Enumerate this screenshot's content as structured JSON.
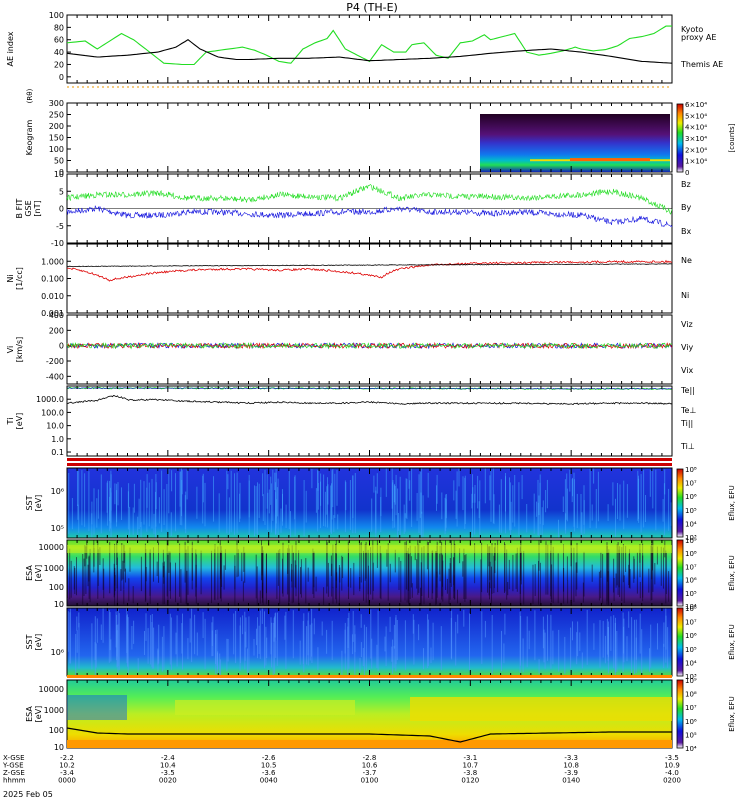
{
  "title": "P4 (TH-E)",
  "date_label": "2025 Feb 05",
  "colors": {
    "green": "#22dd22",
    "red": "#dd0000",
    "blue": "#1010dd",
    "black": "#000000",
    "orange": "#ee9900"
  },
  "chart_data": [
    {
      "id": "ae",
      "type": "line",
      "ylabel": "AE index",
      "ylim": [
        -10,
        100
      ],
      "yticks": [
        "100",
        "80",
        "60",
        "40",
        "20",
        "0"
      ],
      "legend": [
        "Kyoto",
        "proxy AE",
        "Themis AE"
      ],
      "series": [
        {
          "name": "Kyoto proxy AE",
          "color": "#22dd22",
          "x": [
            0,
            6,
            10,
            18,
            22,
            26,
            32,
            38,
            42,
            46,
            52,
            58,
            62,
            66,
            70,
            74,
            78,
            82,
            86,
            88,
            92,
            96,
            100,
            104,
            108,
            112,
            114,
            118,
            122,
            126,
            130,
            134,
            138,
            140,
            144,
            148,
            152,
            156,
            160,
            164,
            168,
            170,
            174,
            178,
            182,
            186,
            190,
            194,
            198,
            200
          ],
          "values": [
            55,
            58,
            45,
            70,
            60,
            45,
            22,
            20,
            20,
            40,
            44,
            48,
            43,
            35,
            25,
            22,
            45,
            55,
            62,
            75,
            45,
            35,
            25,
            52,
            40,
            40,
            52,
            55,
            35,
            30,
            55,
            58,
            68,
            60,
            65,
            70,
            40,
            35,
            38,
            42,
            48,
            45,
            42,
            44,
            50,
            62,
            65,
            70,
            82,
            82
          ]
        },
        {
          "name": "Themis AE",
          "color": "#000000",
          "x": [
            0,
            10,
            20,
            30,
            36,
            40,
            44,
            50,
            56,
            60,
            70,
            80,
            90,
            100,
            110,
            120,
            130,
            140,
            150,
            160,
            170,
            180,
            190,
            200
          ],
          "values": [
            38,
            32,
            35,
            40,
            48,
            60,
            45,
            32,
            28,
            28,
            30,
            30,
            32,
            26,
            28,
            30,
            33,
            38,
            42,
            45,
            40,
            33,
            25,
            22
          ]
        }
      ]
    },
    {
      "id": "keogram",
      "type": "heatmap",
      "ylabel": "Keogram",
      "ylabel2": "(Rθ)",
      "ylim": [
        0,
        300
      ],
      "yticks": [
        "300",
        "250",
        "200",
        "150",
        "100",
        "50",
        "0"
      ],
      "colorbar": {
        "label": "[counts]",
        "ticks": [
          "6×10⁴",
          "5×10⁴",
          "4×10⁴",
          "3×10⁴",
          "2×10⁴",
          "1×10⁴",
          "0"
        ]
      }
    },
    {
      "id": "bfield",
      "type": "line",
      "ylabel": "B FIT",
      "ylabel2": "GSE",
      "ylabel3": "[nT]",
      "ylim": [
        -10,
        10
      ],
      "yticks": [
        "10",
        "5",
        "0",
        "-5",
        "-10"
      ],
      "legend": [
        "Bz",
        "By",
        "Bx"
      ],
      "series": [
        {
          "name": "Bz",
          "color": "#dd0000",
          "values": []
        },
        {
          "name": "By",
          "color": "#22dd22",
          "x": [
            0,
            10,
            20,
            30,
            40,
            50,
            60,
            70,
            80,
            90,
            100,
            110,
            120,
            130,
            140,
            150,
            160,
            170,
            180,
            190,
            200
          ],
          "values": [
            3,
            4,
            4,
            4.5,
            3,
            3,
            2.5,
            4,
            3.5,
            3,
            6.5,
            3,
            4,
            3.5,
            3.5,
            3,
            3.5,
            4,
            5,
            3,
            -1
          ]
        },
        {
          "name": "Bx",
          "color": "#1010dd",
          "x": [
            0,
            10,
            20,
            30,
            40,
            50,
            60,
            70,
            80,
            90,
            100,
            110,
            120,
            130,
            140,
            150,
            160,
            170,
            180,
            190,
            200
          ],
          "values": [
            -1,
            0,
            -2,
            -2,
            -1,
            -1,
            -1.5,
            -2,
            -1.5,
            -1,
            -1,
            0,
            -1,
            -1,
            -1.5,
            -1,
            -1.5,
            -2,
            -4,
            -3,
            -5
          ]
        }
      ]
    },
    {
      "id": "density",
      "type": "line",
      "ylabel": "Ni",
      "ylabel2": "[1/cc]",
      "scale": "log",
      "ylim": [
        0.001,
        10
      ],
      "yticks": [
        "1.000",
        "0.100",
        "0.010",
        "0.001"
      ],
      "legend": [
        "Ne",
        "Ni"
      ],
      "series": [
        {
          "name": "Ne",
          "color": "#dd0000",
          "x": [
            0,
            6,
            10,
            14,
            20,
            30,
            40,
            50,
            60,
            70,
            80,
            90,
            96,
            100,
            104,
            110,
            120,
            130,
            140,
            150,
            160,
            170,
            180,
            190,
            200
          ],
          "values": [
            0.4,
            0.25,
            0.15,
            0.08,
            0.12,
            0.22,
            0.3,
            0.35,
            0.35,
            0.3,
            0.35,
            0.25,
            0.2,
            0.15,
            0.12,
            0.35,
            0.6,
            0.7,
            0.8,
            0.8,
            0.9,
            0.9,
            0.95,
            0.95,
            0.95
          ]
        },
        {
          "name": "Ni",
          "color": "#000000",
          "x": [
            0,
            50,
            100,
            150,
            200
          ],
          "values": [
            0.5,
            0.55,
            0.6,
            0.65,
            0.7
          ]
        }
      ]
    },
    {
      "id": "velocity",
      "type": "line",
      "ylabel": "Vi",
      "ylabel2": "[km/s]",
      "ylim": [
        -500,
        400
      ],
      "yticks": [
        "400",
        "200",
        "0",
        "-200",
        "-400"
      ],
      "legend": [
        "Viz",
        "Viy",
        "Vix"
      ],
      "series": [
        {
          "name": "Viz",
          "color": "#dd0000",
          "values": [
            0
          ]
        },
        {
          "name": "Viy",
          "color": "#22dd22",
          "values": [
            0
          ]
        },
        {
          "name": "Vix",
          "color": "#1010dd",
          "values": [
            0
          ]
        }
      ]
    },
    {
      "id": "temperature",
      "type": "line",
      "ylabel": "Ti",
      "ylabel2": "[eV]",
      "scale": "log",
      "ylim": [
        0.05,
        10000
      ],
      "yticks": [
        "1000.0",
        "100.0",
        "10.0",
        "1.0",
        "0.1"
      ],
      "legend": [
        "Te||",
        "Te⊥",
        "Ti||",
        "Ti⊥"
      ],
      "series": [
        {
          "name": "Ti",
          "color": "#000000",
          "x": [
            0,
            10,
            16,
            20,
            30,
            40,
            50,
            60,
            70,
            80,
            90,
            100,
            110,
            120,
            130,
            140,
            150,
            160,
            170,
            180,
            190,
            200
          ],
          "values": [
            500,
            800,
            1800,
            900,
            900,
            700,
            600,
            500,
            600,
            500,
            500,
            600,
            450,
            500,
            500,
            500,
            500,
            450,
            450,
            500,
            500,
            450
          ]
        },
        {
          "name": "Te",
          "color": "#22dd22",
          "x": [
            0,
            100,
            200
          ],
          "values": [
            7000,
            6500,
            6000
          ]
        }
      ]
    },
    {
      "id": "sst1",
      "type": "heatmap",
      "ylabel": "SST",
      "ylabel2": "[eV]",
      "yticks": [
        "10⁶",
        "10⁵"
      ],
      "colorbar": {
        "label": "Eflux, EFU",
        "ticks": [
          "10⁸",
          "10⁷",
          "10⁶",
          "10⁵",
          "10⁴",
          "10³"
        ]
      }
    },
    {
      "id": "esa1",
      "type": "heatmap",
      "ylabel": "ESA",
      "ylabel2": "[eV]",
      "yticks": [
        "10000",
        "1000",
        "100",
        "10"
      ],
      "colorbar": {
        "label": "Eflux, EFU",
        "ticks": [
          "10⁹",
          "10⁸",
          "10⁷",
          "10⁶",
          "10⁵",
          "10⁴"
        ]
      }
    },
    {
      "id": "sst2",
      "type": "heatmap",
      "ylabel": "SST",
      "ylabel2": "[eV]",
      "yticks": [
        "10⁶"
      ],
      "colorbar": {
        "label": "Eflux, EFU",
        "ticks": [
          "10⁸",
          "10⁷",
          "10⁶",
          "10⁵",
          "10⁴",
          "10³"
        ]
      }
    },
    {
      "id": "esa2",
      "type": "heatmap",
      "ylabel": "ESA",
      "ylabel2": "[eV]",
      "yticks": [
        "10000",
        "1000",
        "100",
        "10"
      ],
      "colorbar": {
        "label": "Eflux, EFU",
        "ticks": [
          "10⁹",
          "10⁸",
          "10⁷",
          "10⁶",
          "10⁵",
          "10⁴"
        ]
      }
    }
  ],
  "xaxis": {
    "row_labels": [
      "X-GSE",
      "Y-GSE",
      "Z-GSE",
      "hhmm"
    ],
    "ticks": [
      {
        "x": [
          "-2.2",
          "10.2",
          "-3.4",
          "0000"
        ]
      },
      {
        "x": [
          "-2.4",
          "10.4",
          "-3.5",
          "0020"
        ]
      },
      {
        "x": [
          "-2.6",
          "10.5",
          "-3.6",
          "0040"
        ]
      },
      {
        "x": [
          "-2.8",
          "10.6",
          "-3.7",
          "0100"
        ]
      },
      {
        "x": [
          "-3.1",
          "10.7",
          "-3.8",
          "0120"
        ]
      },
      {
        "x": [
          "-3.3",
          "10.8",
          "-3.9",
          "0140"
        ]
      },
      {
        "x": [
          "-3.5",
          "10.9",
          "-4.0",
          "0200"
        ]
      }
    ]
  }
}
